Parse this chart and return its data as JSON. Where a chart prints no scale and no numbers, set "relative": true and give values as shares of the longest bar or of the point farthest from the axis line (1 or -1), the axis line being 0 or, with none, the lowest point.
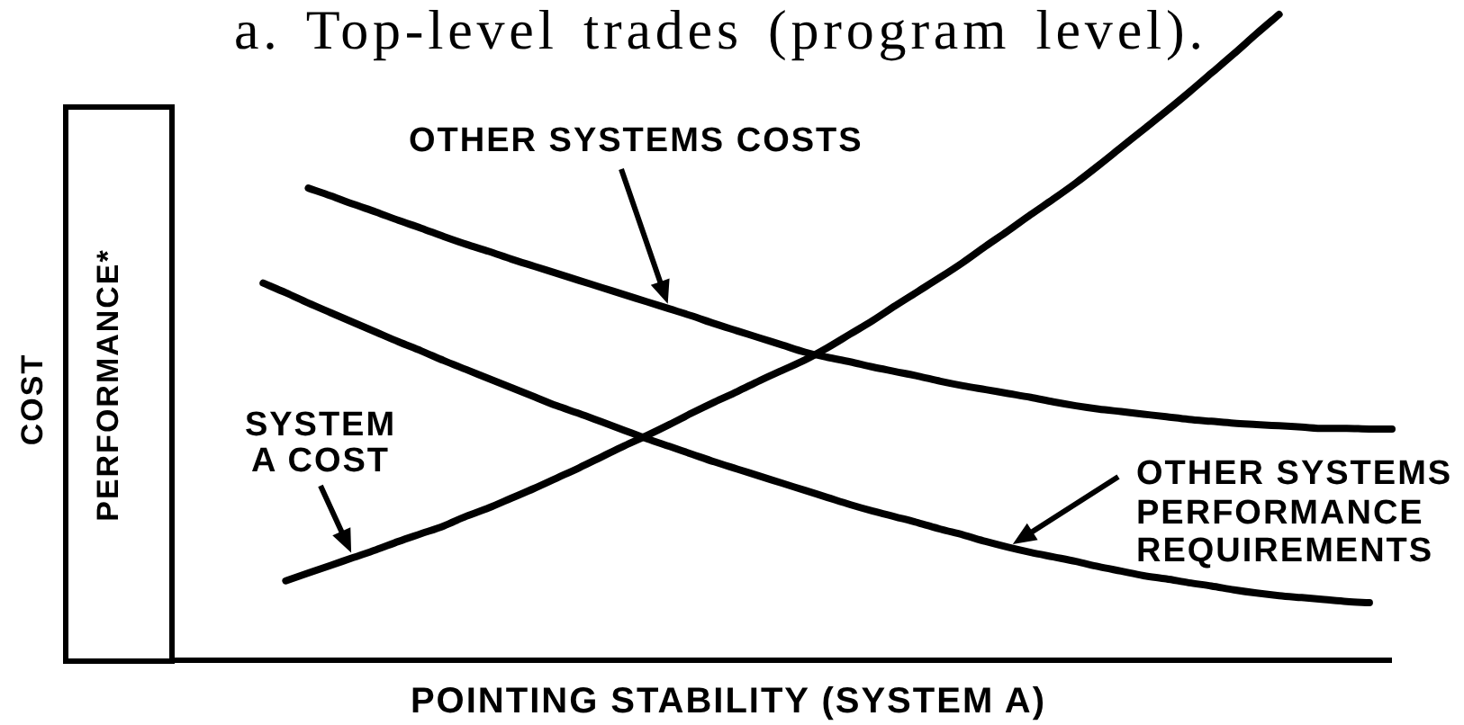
{
  "chart_data": {
    "type": "line",
    "title": "a. Top-level trades (program level).",
    "xlabel": "POINTING STABILITY (SYSTEM A)",
    "ylabel": "COST",
    "annotations": [
      "PERFORMANCE*"
    ],
    "relative": true,
    "marker": "none",
    "line_style": "solid",
    "tick_labels": false,
    "categories": [
      null,
      null,
      null,
      null,
      null,
      null,
      null,
      null,
      null,
      null,
      null,
      null,
      null,
      null,
      null,
      null,
      null,
      null,
      null,
      null,
      null,
      null,
      null,
      null,
      null,
      null,
      null,
      null,
      null,
      null,
      null,
      null,
      null,
      null,
      null,
      null,
      null,
      null,
      null,
      null,
      null,
      null,
      null,
      null,
      null,
      null,
      null,
      null,
      null,
      null,
      null,
      null,
      null,
      null,
      null
    ],
    "series": [
      {
        "name": "OTHER SYSTEMS COSTS",
        "color": "#000000",
        "values": [
          null,
          null,
          null,
          null,
          null,
          null,
          0.731,
          0.719,
          0.706,
          0.694,
          0.681,
          0.669,
          0.656,
          0.644,
          0.633,
          0.621,
          0.61,
          0.599,
          0.588,
          0.577,
          0.566,
          0.555,
          0.544,
          0.533,
          0.521,
          0.51,
          0.499,
          0.488,
          0.477,
          0.469,
          0.462,
          0.454,
          0.447,
          0.44,
          0.432,
          0.425,
          0.419,
          0.413,
          0.407,
          0.4,
          0.394,
          0.389,
          0.385,
          0.381,
          0.377,
          0.373,
          0.37,
          0.367,
          0.365,
          0.363,
          0.361,
          0.359,
          0.359,
          0.358,
          0.358
        ]
      },
      {
        "name": "SYSTEM A COST",
        "color": "#000000",
        "values": [
          null,
          null,
          null,
          null,
          null,
          0.123,
          0.135,
          0.147,
          0.159,
          0.171,
          0.184,
          0.196,
          0.208,
          0.223,
          0.236,
          0.251,
          0.266,
          0.282,
          0.298,
          0.315,
          0.332,
          0.348,
          0.365,
          0.383,
          0.4,
          0.416,
          0.433,
          0.449,
          0.465,
          0.484,
          0.505,
          0.526,
          0.549,
          0.571,
          0.593,
          0.616,
          0.641,
          0.665,
          0.69,
          0.714,
          0.739,
          0.766,
          0.794,
          0.822,
          0.85,
          0.879,
          0.909,
          0.939,
          0.97,
          1,
          null,
          null,
          null,
          null,
          null
        ]
      },
      {
        "name": "OTHER SYSTEMS PERFORMANCE REQUIREMENTS",
        "color": "#000000",
        "values": [
          null,
          null,
          null,
          null,
          0.584,
          0.569,
          0.553,
          0.538,
          0.523,
          0.508,
          0.493,
          0.479,
          0.464,
          0.45,
          0.436,
          0.422,
          0.408,
          0.394,
          0.382,
          0.369,
          0.356,
          0.343,
          0.331,
          0.319,
          0.307,
          0.296,
          0.285,
          0.274,
          0.263,
          0.252,
          0.241,
          0.231,
          0.222,
          0.213,
          0.203,
          0.194,
          0.184,
          0.175,
          0.167,
          0.16,
          0.153,
          0.145,
          0.138,
          0.131,
          0.126,
          0.12,
          0.115,
          0.109,
          0.104,
          0.1,
          0.097,
          0.094,
          0.091,
          0.089,
          null
        ]
      }
    ]
  }
}
